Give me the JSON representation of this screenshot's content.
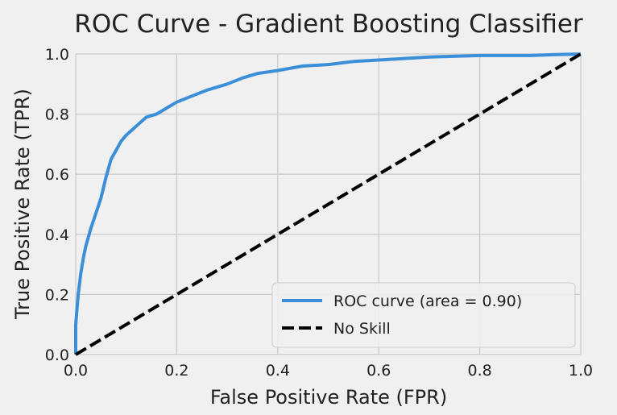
{
  "chart_data": {
    "type": "line",
    "title": "ROC Curve - Gradient Boosting Classifier",
    "xlabel": "False Positive Rate (FPR)",
    "ylabel": "True Positive Rate (TPR)",
    "xlim": [
      0.0,
      1.0
    ],
    "ylim": [
      0.0,
      1.0
    ],
    "xticks": [
      "0.0",
      "0.2",
      "0.4",
      "0.6",
      "0.8",
      "1.0"
    ],
    "yticks": [
      "0.0",
      "0.2",
      "0.4",
      "0.6",
      "0.8",
      "1.0"
    ],
    "grid": true,
    "legend_position": "lower-right",
    "series": [
      {
        "name": "ROC curve (area = 0.90)",
        "color": "#3b8fd8",
        "style": "solid",
        "x": [
          0.0,
          0.0,
          0.005,
          0.01,
          0.015,
          0.02,
          0.03,
          0.04,
          0.05,
          0.06,
          0.07,
          0.08,
          0.09,
          0.1,
          0.12,
          0.14,
          0.16,
          0.18,
          0.2,
          0.23,
          0.26,
          0.3,
          0.33,
          0.36,
          0.4,
          0.45,
          0.5,
          0.55,
          0.6,
          0.65,
          0.7,
          0.8,
          0.9,
          0.95,
          1.0
        ],
        "y": [
          0.0,
          0.1,
          0.2,
          0.27,
          0.32,
          0.36,
          0.42,
          0.47,
          0.52,
          0.59,
          0.65,
          0.68,
          0.71,
          0.73,
          0.76,
          0.79,
          0.8,
          0.82,
          0.84,
          0.86,
          0.88,
          0.9,
          0.92,
          0.935,
          0.945,
          0.96,
          0.965,
          0.975,
          0.98,
          0.985,
          0.99,
          0.995,
          0.995,
          0.998,
          1.0
        ]
      },
      {
        "name": "No Skill",
        "color": "#000000",
        "style": "dashed",
        "x": [
          0.0,
          1.0
        ],
        "y": [
          0.0,
          1.0
        ]
      }
    ]
  }
}
